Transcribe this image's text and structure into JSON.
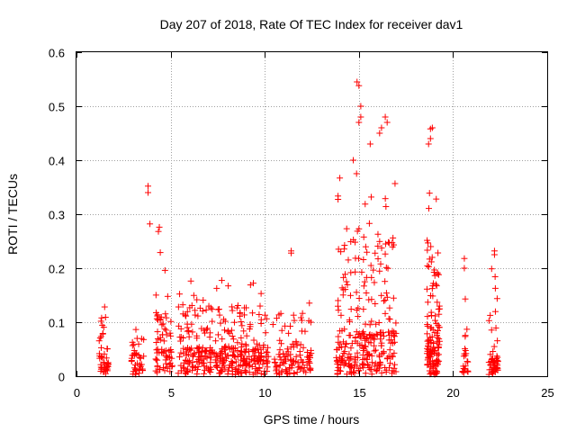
{
  "chart_data": {
    "type": "scatter",
    "title": "Day 207 of 2018, Rate Of TEC Index for receiver dav1",
    "xlabel": "GPS time / hours",
    "ylabel": "ROTI / TECUs",
    "xlim": [
      0,
      25
    ],
    "ylim": [
      0,
      0.6
    ],
    "xticks": [
      0,
      5,
      10,
      15,
      20,
      25
    ],
    "yticks": [
      0,
      0.1,
      0.2,
      0.3,
      0.4,
      0.5,
      0.6
    ],
    "xtick_labels": [
      "0",
      "5",
      "10",
      "15",
      "20",
      "25"
    ],
    "ytick_labels": [
      "0",
      "0.1",
      "0.2",
      "0.3",
      "0.4",
      "0.5",
      "0.6"
    ],
    "grid": true,
    "marker": "+",
    "color": "#ff0000",
    "clusters": [
      {
        "x_range": [
          1.2,
          1.7
        ],
        "base": 0.04,
        "peak": 0.15,
        "density": 45
      },
      {
        "x_range": [
          2.9,
          3.6
        ],
        "base": 0.04,
        "peak": 0.09,
        "density": 40
      },
      {
        "x_range": [
          4.2,
          5.1
        ],
        "base": 0.05,
        "peak": 0.16,
        "density": 70
      },
      {
        "x_range": [
          5.4,
          7.6
        ],
        "base": 0.05,
        "peak": 0.18,
        "density": 150
      },
      {
        "x_range": [
          7.6,
          10.2
        ],
        "base": 0.05,
        "peak": 0.18,
        "density": 200
      },
      {
        "x_range": [
          10.4,
          12.5
        ],
        "base": 0.04,
        "peak": 0.15,
        "density": 110
      },
      {
        "x_range": [
          13.8,
          17.0
        ],
        "base": 0.08,
        "peak": 0.38,
        "density": 290
      },
      {
        "x_range": [
          18.6,
          19.3
        ],
        "base": 0.09,
        "peak": 0.35,
        "density": 130
      },
      {
        "x_range": [
          20.5,
          20.8
        ],
        "base": 0.05,
        "peak": 0.11,
        "density": 22
      },
      {
        "x_range": [
          21.9,
          22.4
        ],
        "base": 0.03,
        "peak": 0.22,
        "density": 55
      }
    ],
    "points": [
      {
        "x": 3.8,
        "y": 0.352
      },
      {
        "x": 3.8,
        "y": 0.34
      },
      {
        "x": 3.9,
        "y": 0.282
      },
      {
        "x": 4.4,
        "y": 0.276
      },
      {
        "x": 4.35,
        "y": 0.268
      },
      {
        "x": 4.45,
        "y": 0.229
      },
      {
        "x": 4.7,
        "y": 0.196
      },
      {
        "x": 11.4,
        "y": 0.232
      },
      {
        "x": 11.4,
        "y": 0.228
      },
      {
        "x": 14.9,
        "y": 0.545
      },
      {
        "x": 15.0,
        "y": 0.538
      },
      {
        "x": 15.1,
        "y": 0.5
      },
      {
        "x": 15.1,
        "y": 0.48
      },
      {
        "x": 15.0,
        "y": 0.47
      },
      {
        "x": 14.7,
        "y": 0.4
      },
      {
        "x": 16.4,
        "y": 0.48
      },
      {
        "x": 16.5,
        "y": 0.47
      },
      {
        "x": 16.2,
        "y": 0.46
      },
      {
        "x": 16.1,
        "y": 0.45
      },
      {
        "x": 15.6,
        "y": 0.43
      },
      {
        "x": 18.9,
        "y": 0.46
      },
      {
        "x": 18.8,
        "y": 0.458
      },
      {
        "x": 18.8,
        "y": 0.44
      },
      {
        "x": 18.7,
        "y": 0.43
      },
      {
        "x": 20.6,
        "y": 0.218
      },
      {
        "x": 20.6,
        "y": 0.2
      },
      {
        "x": 20.65,
        "y": 0.143
      },
      {
        "x": 22.2,
        "y": 0.232
      },
      {
        "x": 22.2,
        "y": 0.225
      }
    ]
  }
}
